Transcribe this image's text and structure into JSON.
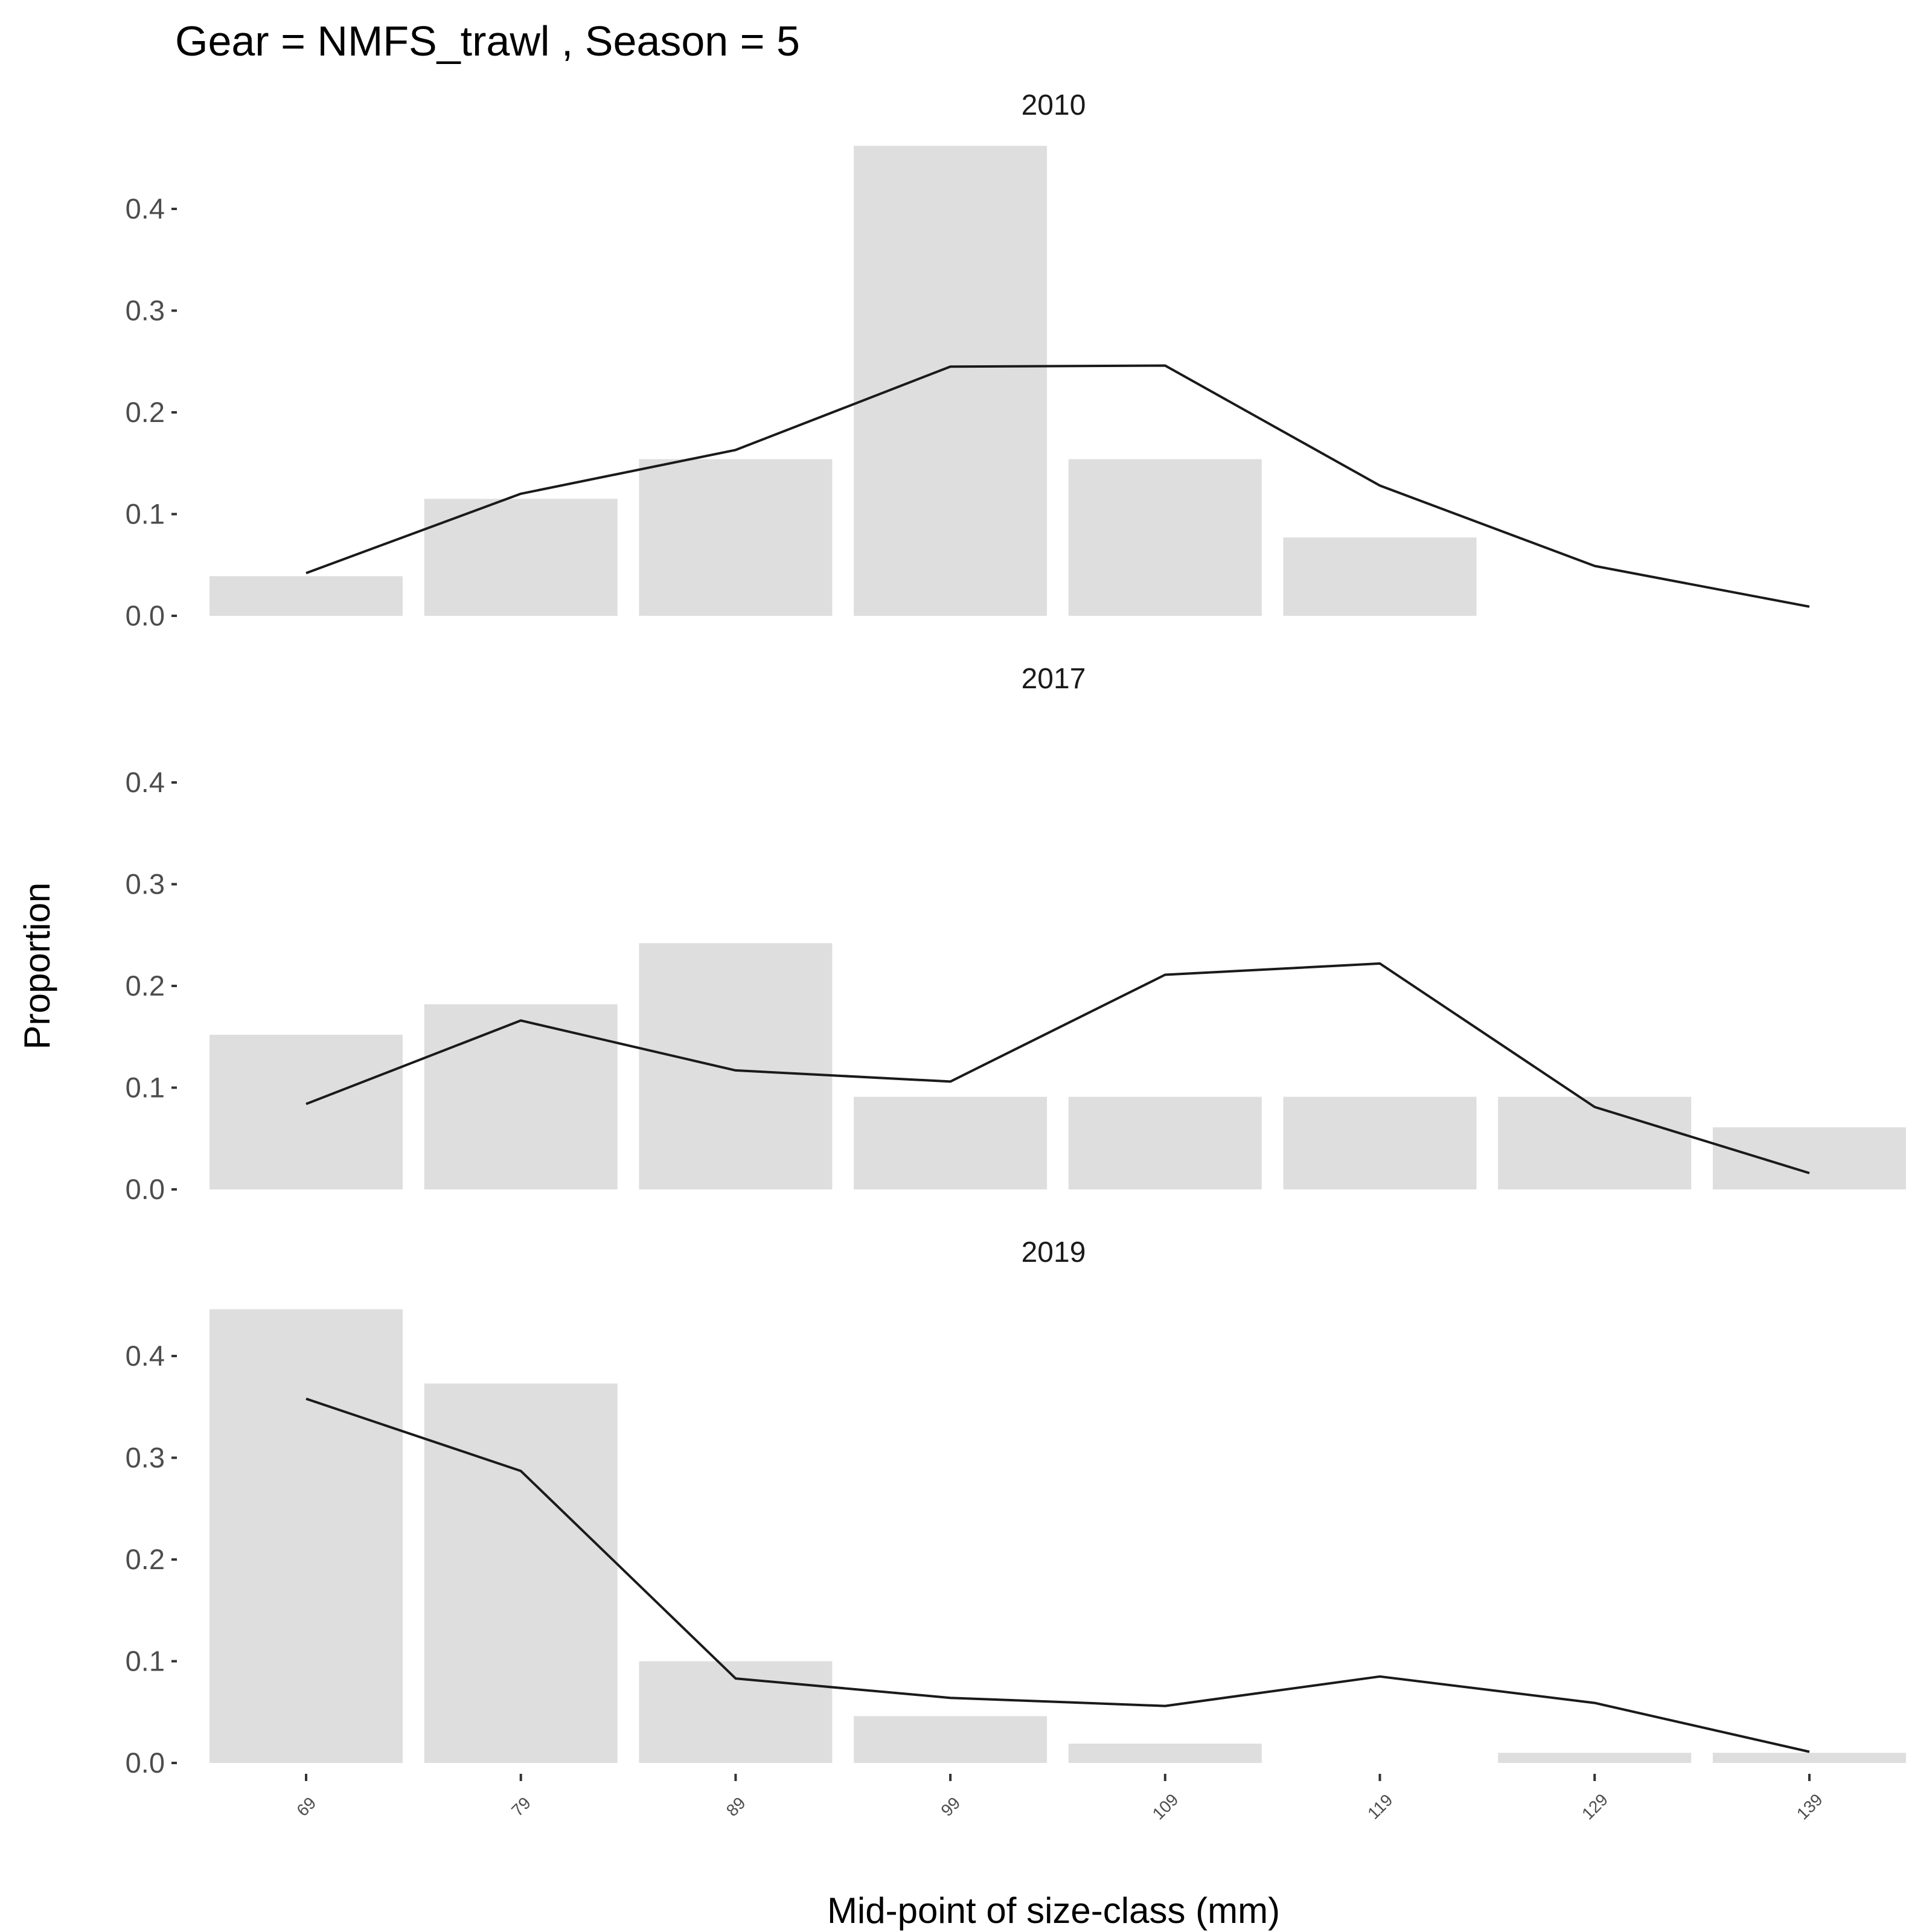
{
  "chart_data": {
    "type": "bar",
    "title": "Gear = NMFS_trawl , Season = 5",
    "xlabel": "Mid-point of size-class (mm)",
    "ylabel": "Proportion",
    "categories": [
      "69",
      "79",
      "89",
      "99",
      "109",
      "119",
      "129",
      "139"
    ],
    "y_ticks": [
      "0.0",
      "0.1",
      "0.2",
      "0.3",
      "0.4"
    ],
    "ylim": [
      0,
      0.46
    ],
    "grid": false,
    "legend": "none",
    "colors": {
      "bar": "#dedede",
      "line": "#1a1a1a"
    },
    "panels": [
      {
        "label": "2010",
        "observed": [
          0.039,
          0.115,
          0.154,
          0.462,
          0.154,
          0.077,
          0.0,
          0.0
        ],
        "expected": [
          0.042,
          0.12,
          0.163,
          0.245,
          0.246,
          0.128,
          0.049,
          0.009
        ]
      },
      {
        "label": "2017",
        "observed": [
          0.152,
          0.182,
          0.242,
          0.091,
          0.091,
          0.091,
          0.091,
          0.061
        ],
        "expected": [
          0.084,
          0.166,
          0.117,
          0.106,
          0.211,
          0.222,
          0.081,
          0.016
        ]
      },
      {
        "label": "2019",
        "observed": [
          0.446,
          0.373,
          0.1,
          0.046,
          0.019,
          0.0,
          0.01,
          0.01
        ],
        "expected": [
          0.358,
          0.287,
          0.083,
          0.064,
          0.056,
          0.085,
          0.059,
          0.011
        ]
      }
    ]
  }
}
